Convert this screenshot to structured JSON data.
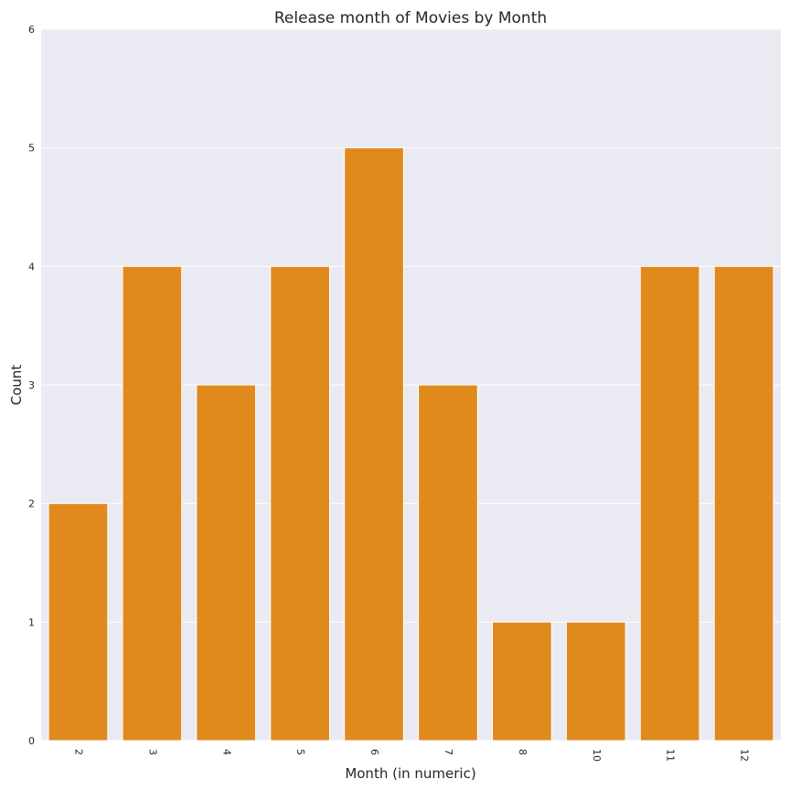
{
  "chart_data": {
    "type": "bar",
    "title": "Release month of Movies by Month",
    "xlabel": "Month (in numeric)",
    "ylabel": "Count",
    "categories": [
      "2",
      "3",
      "4",
      "5",
      "6",
      "7",
      "8",
      "10",
      "11",
      "12"
    ],
    "values": [
      2,
      4,
      3,
      4,
      5,
      3,
      1,
      1,
      4,
      4
    ],
    "ylim": [
      0,
      6
    ],
    "yticks": [
      "0",
      "1",
      "2",
      "3",
      "4",
      "5",
      "6"
    ],
    "grid": true,
    "bar_color": "#e08a1e",
    "background_color": "#eaeaf2",
    "grid_color": "#ffffff"
  }
}
